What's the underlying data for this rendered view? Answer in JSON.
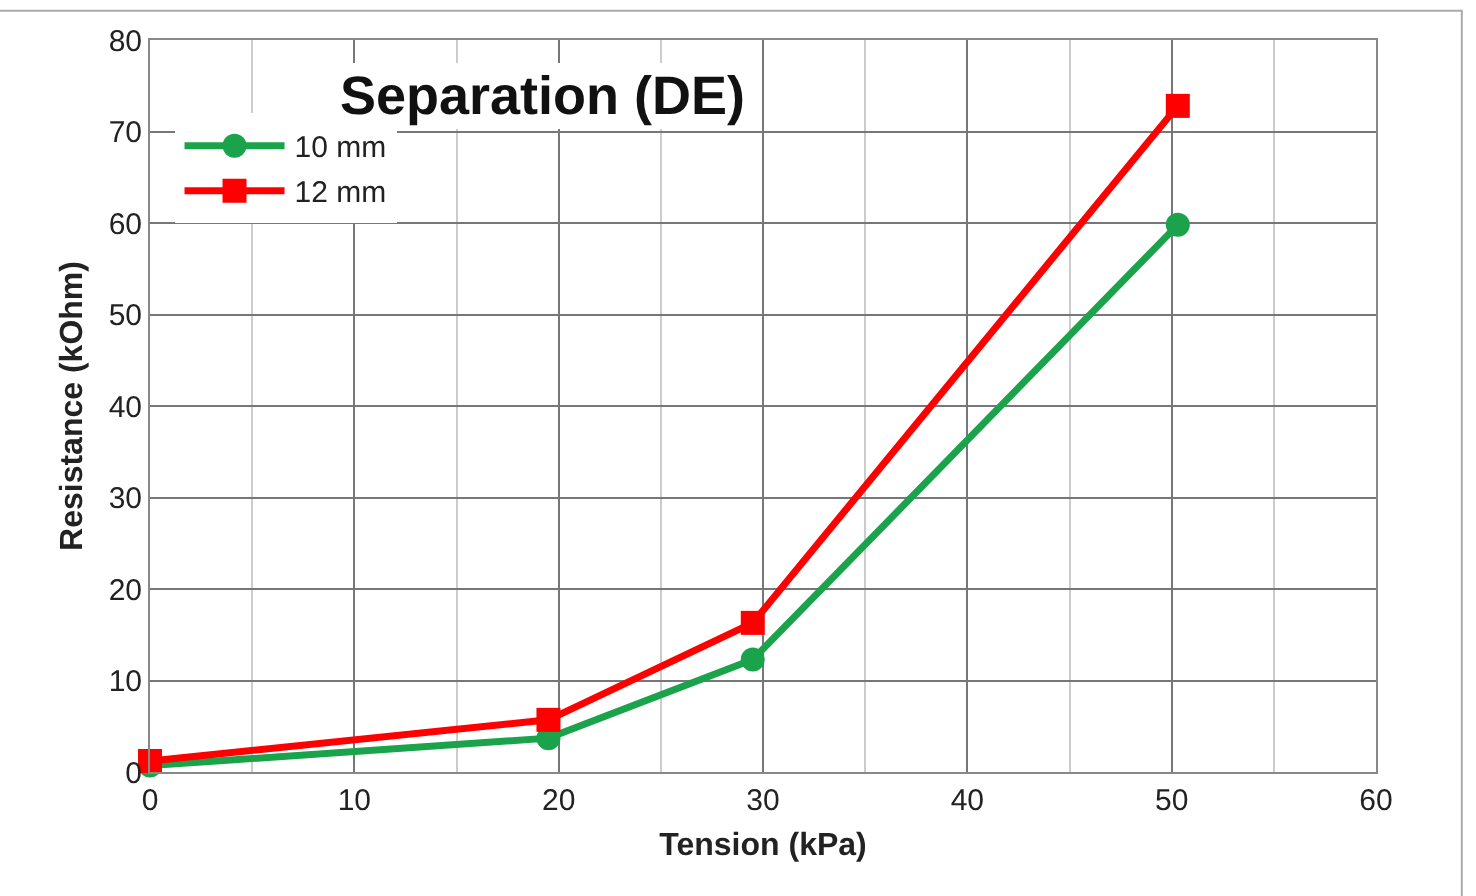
{
  "chart_data": {
    "type": "line",
    "title": "Separation (DE)",
    "xlabel": "Tension (kPa)",
    "ylabel": "Resistance (kOhm)",
    "xlim": [
      0,
      60
    ],
    "xticks": [
      0,
      10,
      20,
      30,
      40,
      50,
      60
    ],
    "ylim": [
      0,
      80
    ],
    "yticks": [
      0,
      10,
      20,
      30,
      40,
      50,
      60,
      70,
      80
    ],
    "grid": true,
    "legend": "top left",
    "line_style": "solid",
    "series": [
      {
        "name": "10 mm",
        "color": "#1aa34a",
        "marker": "circle",
        "x": [
          0,
          19.5,
          29.5,
          50.3
        ],
        "values": [
          0.7,
          3.7,
          12.3,
          59.8
        ]
      },
      {
        "name": "12 mm",
        "color": "#ff0000",
        "marker": "square",
        "x": [
          0,
          19.5,
          29.5,
          50.3
        ],
        "values": [
          1.2,
          5.7,
          16.3,
          72.8
        ]
      }
    ]
  }
}
